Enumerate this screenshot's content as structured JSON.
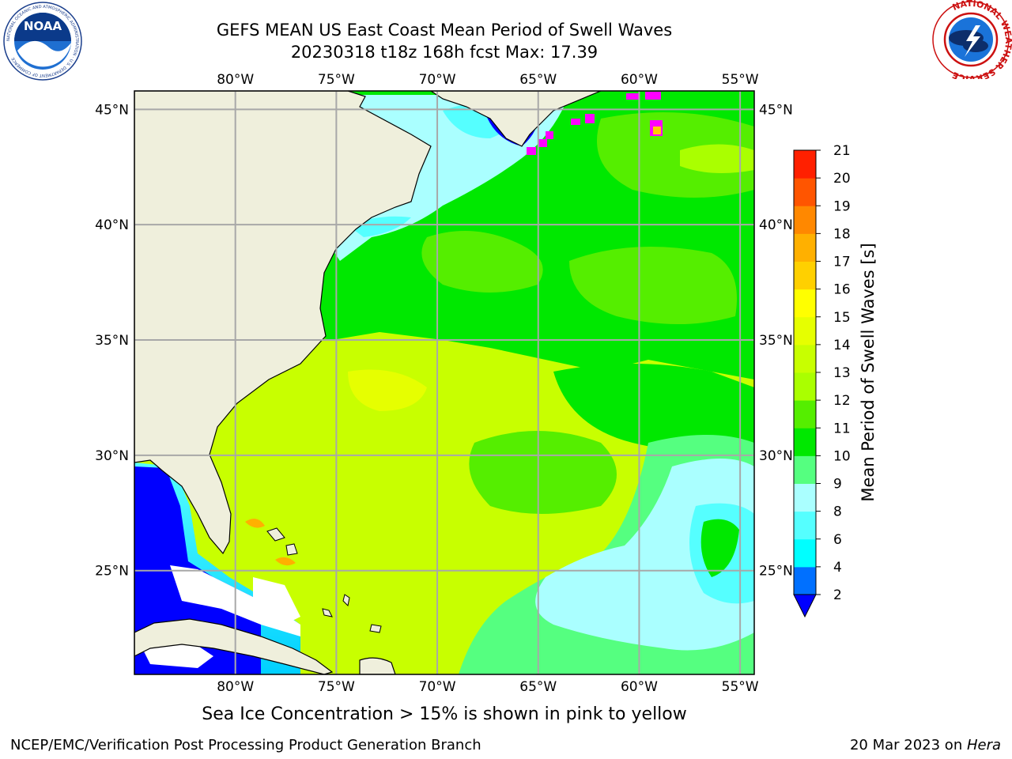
{
  "header": {
    "title_line1": "GEFS MEAN US East Coast Mean Period of Swell Waves",
    "title_line2": "20230318 t18z 168h fcst   Max: 17.39"
  },
  "logos": {
    "left": {
      "icon": "noaa-logo",
      "text": "NOAA",
      "ring_text": "NATIONAL OCEANIC AND ATMOSPHERIC ADMINISTRATION · U.S. DEPARTMENT OF COMMERCE"
    },
    "right": {
      "icon": "nws-logo",
      "ring_text": "NATIONAL WEATHER SERVICE"
    }
  },
  "map": {
    "lon_labels": [
      "80°W",
      "75°W",
      "70°W",
      "65°W",
      "60°W",
      "55°W"
    ],
    "lat_labels": [
      "45°N",
      "40°N",
      "35°N",
      "30°N",
      "25°N"
    ],
    "lon_values": [
      -80,
      -75,
      -70,
      -65,
      -60,
      -55
    ],
    "lat_values": [
      45,
      40,
      35,
      30,
      25
    ],
    "extent": {
      "lon_min": -85,
      "lon_max": -54.3,
      "lat_min": 20.5,
      "lat_max": 45.8
    },
    "gridlines": true,
    "land_color": "#efefdc",
    "ocean_field_colors": [
      "#c8ff00",
      "#00e800",
      "#55ff55",
      "#aaffff",
      "#0000ff"
    ]
  },
  "colorbar": {
    "label": "Mean Period of Swell Waves [s]",
    "ticks": [
      "2",
      "4",
      "6",
      "8",
      "9",
      "10",
      "11",
      "12",
      "13",
      "14",
      "15",
      "16",
      "17",
      "18",
      "19",
      "20",
      "21"
    ],
    "colors": [
      "#0070ff",
      "#00ffff",
      "#55ffff",
      "#aaffff",
      "#55ff80",
      "#00e800",
      "#55ee00",
      "#aaff00",
      "#c8ff00",
      "#e6ff00",
      "#ffff00",
      "#ffd000",
      "#ffb000",
      "#ff8800",
      "#ff5500",
      "#ff2000"
    ],
    "extend_min_color": "#0000ff"
  },
  "footer": {
    "sea_ice_note": "Sea Ice Concentration > 15% is shown in pink to yellow",
    "credit": "NCEP/EMC/Verification Post Processing Product Generation Branch",
    "date_text": "20 Mar 2023 on ",
    "host": "Hera"
  }
}
